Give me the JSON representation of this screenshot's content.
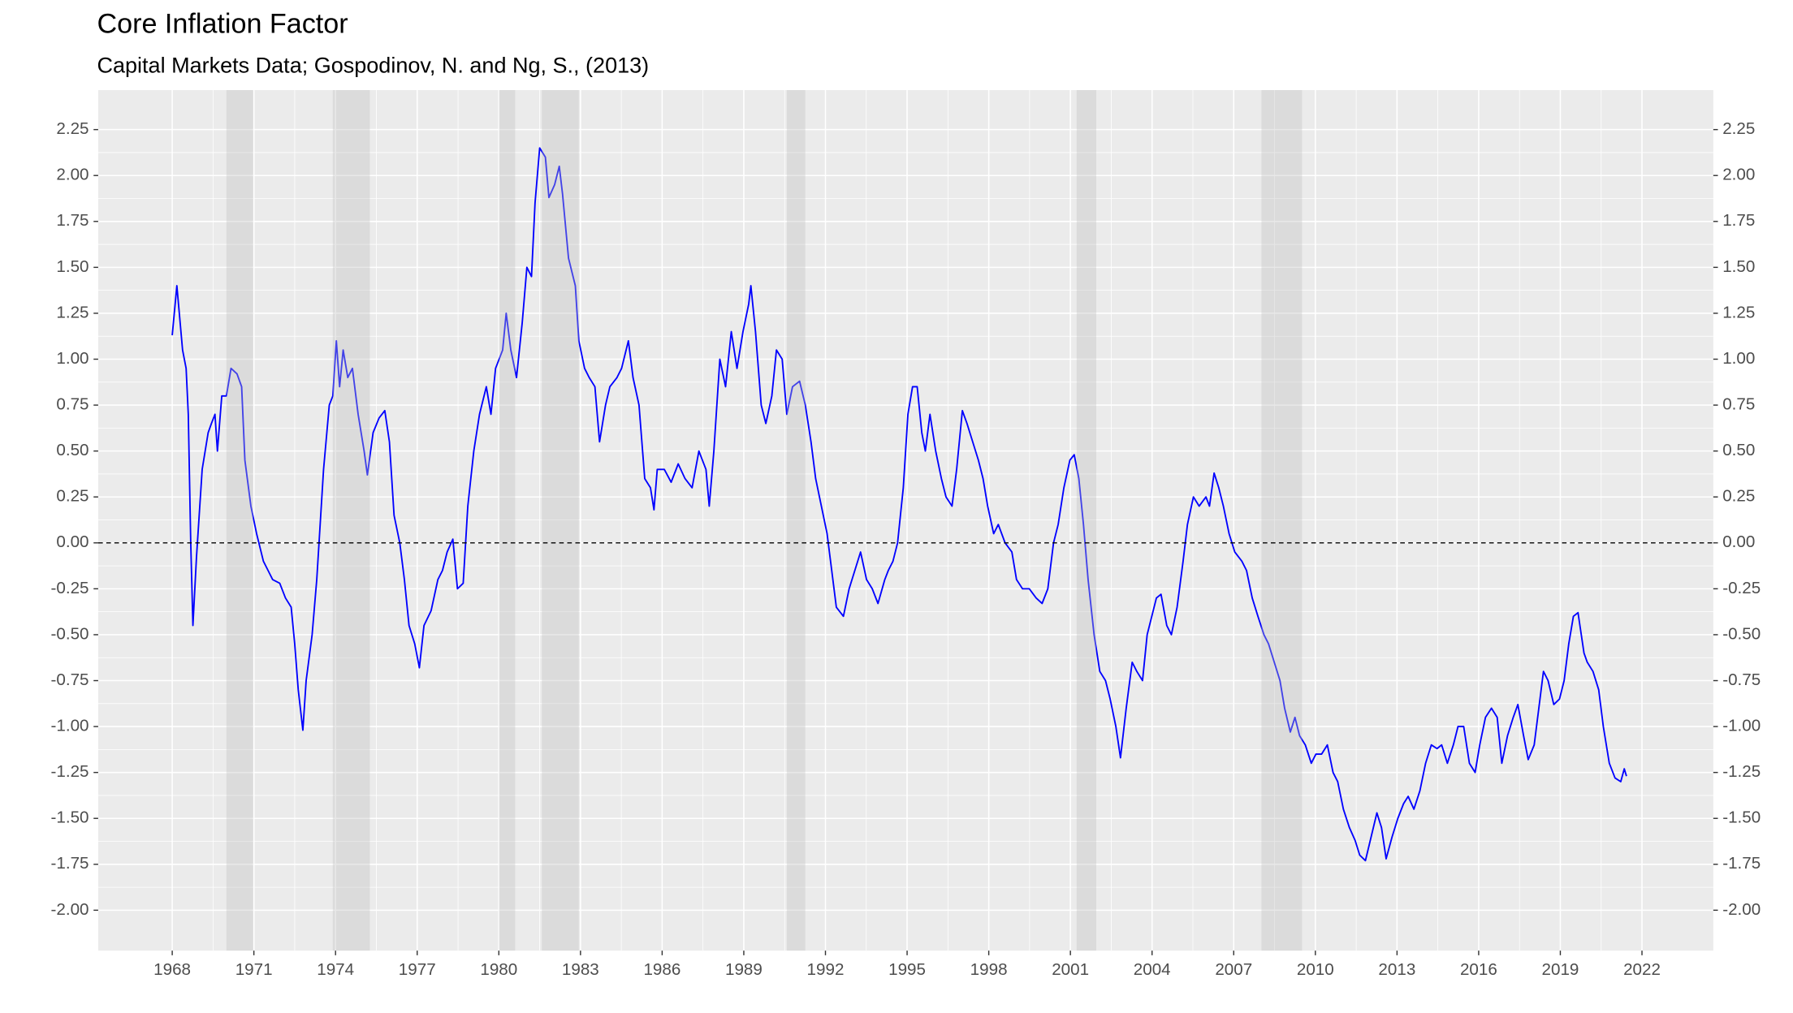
{
  "chart_data": {
    "type": "line",
    "title": "Core Inflation Factor",
    "subtitle": "Capital Markets Data; Gospodinov, N. and Ng, S., (2013)",
    "color": "#0000ff",
    "grid": true,
    "reference_line": 0,
    "shaded_periods": [
      [
        1969.99,
        1970.97
      ],
      [
        1973.9,
        1975.26
      ],
      [
        1980.01,
        1980.6
      ],
      [
        1981.58,
        1982.94
      ],
      [
        1990.58,
        1991.26
      ],
      [
        2001.23,
        2001.95
      ],
      [
        2008.02,
        2009.51
      ]
    ],
    "xlim": [
      1965.28,
      2024.62
    ],
    "xticks": [
      1968,
      1971,
      1974,
      1977,
      1980,
      1983,
      1986,
      1989,
      1992,
      1995,
      1998,
      2001,
      2004,
      2007,
      2010,
      2013,
      2016,
      2019,
      2022
    ],
    "ylim": [
      -2.22,
      2.465
    ],
    "yticks": [
      {
        "value": -2,
        "label": "-2.00"
      },
      {
        "value": -1.75,
        "label": "-1.75"
      },
      {
        "value": -1.5,
        "label": "-1.50"
      },
      {
        "value": -1.25,
        "label": "-1.25"
      },
      {
        "value": -1,
        "label": "-1.00"
      },
      {
        "value": -0.75,
        "label": "-0.75"
      },
      {
        "value": -0.5,
        "label": "-0.50"
      },
      {
        "value": -0.25,
        "label": "-0.25"
      },
      {
        "value": 0,
        "label": "0.00"
      },
      {
        "value": 0.25,
        "label": "0.25"
      },
      {
        "value": 0.5,
        "label": "0.50"
      },
      {
        "value": 0.75,
        "label": "0.75"
      },
      {
        "value": 1,
        "label": "1.00"
      },
      {
        "value": 1.25,
        "label": "1.25"
      },
      {
        "value": 1.5,
        "label": "1.50"
      },
      {
        "value": 1.75,
        "label": "1.75"
      },
      {
        "value": 2,
        "label": "2.00"
      },
      {
        "value": 2.25,
        "label": "2.25"
      }
    ],
    "x": [
      1968.0,
      1968.17,
      1968.38,
      1968.51,
      1968.59,
      1968.68,
      1968.76,
      1968.89,
      1969.1,
      1969.32,
      1969.44,
      1969.57,
      1969.66,
      1969.82,
      1969.99,
      1970.16,
      1970.38,
      1970.55,
      1970.67,
      1970.89,
      1971.1,
      1971.35,
      1971.52,
      1971.69,
      1971.95,
      1972.16,
      1972.37,
      1972.5,
      1972.63,
      1972.8,
      1972.92,
      1973.14,
      1973.31,
      1973.56,
      1973.77,
      1973.9,
      1974.03,
      1974.15,
      1974.28,
      1974.45,
      1974.62,
      1974.83,
      1975.05,
      1975.17,
      1975.38,
      1975.6,
      1975.81,
      1975.98,
      1976.15,
      1976.36,
      1976.53,
      1976.7,
      1976.91,
      1977.08,
      1977.25,
      1977.51,
      1977.76,
      1977.93,
      1978.1,
      1978.31,
      1978.48,
      1978.69,
      1978.86,
      1979.08,
      1979.29,
      1979.54,
      1979.71,
      1979.88,
      1980.14,
      1980.27,
      1980.44,
      1980.65,
      1980.86,
      1981.03,
      1981.2,
      1981.33,
      1981.5,
      1981.71,
      1981.84,
      1982.05,
      1982.22,
      1982.34,
      1982.56,
      1982.81,
      1982.94,
      1983.15,
      1983.32,
      1983.53,
      1983.7,
      1983.92,
      1984.08,
      1984.34,
      1984.51,
      1984.76,
      1984.93,
      1985.15,
      1985.36,
      1985.57,
      1985.7,
      1985.82,
      1986.08,
      1986.33,
      1986.59,
      1986.84,
      1987.1,
      1987.35,
      1987.61,
      1987.73,
      1987.9,
      1988.12,
      1988.33,
      1988.54,
      1988.75,
      1988.97,
      1989.18,
      1989.26,
      1989.43,
      1989.64,
      1989.81,
      1990.03,
      1990.2,
      1990.41,
      1990.58,
      1990.79,
      1991.05,
      1991.26,
      1991.47,
      1991.64,
      1991.85,
      1992.06,
      1992.23,
      1992.4,
      1992.66,
      1992.87,
      1993.08,
      1993.29,
      1993.51,
      1993.72,
      1993.93,
      1994.18,
      1994.31,
      1994.48,
      1994.65,
      1994.86,
      1995.03,
      1995.2,
      1995.37,
      1995.54,
      1995.67,
      1995.84,
      1996.05,
      1996.26,
      1996.43,
      1996.65,
      1996.82,
      1997.03,
      1997.2,
      1997.41,
      1997.62,
      1997.79,
      1997.96,
      1998.18,
      1998.35,
      1998.6,
      1998.85,
      1999.02,
      1999.24,
      1999.49,
      1999.74,
      1999.96,
      2000.17,
      2000.38,
      2000.55,
      2000.76,
      2000.98,
      2001.14,
      2001.31,
      2001.48,
      2001.65,
      2001.87,
      2002.08,
      2002.29,
      2002.46,
      2002.67,
      2002.84,
      2003.05,
      2003.27,
      2003.44,
      2003.65,
      2003.82,
      2003.99,
      2004.16,
      2004.33,
      2004.54,
      2004.71,
      2004.92,
      2005.14,
      2005.3,
      2005.52,
      2005.73,
      2005.98,
      2006.11,
      2006.28,
      2006.45,
      2006.62,
      2006.83,
      2007.04,
      2007.3,
      2007.47,
      2007.68,
      2007.89,
      2008.11,
      2008.28,
      2008.49,
      2008.7,
      2008.87,
      2009.08,
      2009.25,
      2009.42,
      2009.63,
      2009.85,
      2010.02,
      2010.23,
      2010.44,
      2010.65,
      2010.82,
      2011.03,
      2011.25,
      2011.46,
      2011.63,
      2011.84,
      2012.05,
      2012.26,
      2012.43,
      2012.6,
      2012.82,
      2013.03,
      2013.24,
      2013.41,
      2013.62,
      2013.84,
      2014.05,
      2014.26,
      2014.47,
      2014.64,
      2014.85,
      2015.07,
      2015.24,
      2015.45,
      2015.66,
      2015.87,
      2016.04,
      2016.25,
      2016.47,
      2016.68,
      2016.85,
      2017.06,
      2017.27,
      2017.44,
      2017.65,
      2017.82,
      2018.04,
      2018.21,
      2018.38,
      2018.55,
      2018.76,
      2018.97,
      2019.14,
      2019.31,
      2019.48,
      2019.65,
      2019.87,
      2019.99,
      2020.2,
      2020.41,
      2020.58,
      2020.8,
      2021.01,
      2021.22,
      2021.35,
      2021.43
    ],
    "values": [
      1.13,
      1.4,
      1.05,
      0.95,
      0.7,
      0.0,
      -0.45,
      -0.08,
      0.4,
      0.6,
      0.65,
      0.7,
      0.5,
      0.8,
      0.8,
      0.95,
      0.92,
      0.85,
      0.45,
      0.2,
      0.05,
      -0.1,
      -0.15,
      -0.2,
      -0.22,
      -0.3,
      -0.35,
      -0.55,
      -0.8,
      -1.02,
      -0.75,
      -0.5,
      -0.2,
      0.4,
      0.75,
      0.8,
      1.1,
      0.85,
      1.05,
      0.9,
      0.95,
      0.7,
      0.5,
      0.37,
      0.6,
      0.68,
      0.72,
      0.55,
      0.15,
      0.0,
      -0.2,
      -0.45,
      -0.55,
      -0.68,
      -0.45,
      -0.37,
      -0.2,
      -0.15,
      -0.05,
      0.02,
      -0.25,
      -0.22,
      0.2,
      0.5,
      0.7,
      0.85,
      0.7,
      0.95,
      1.05,
      1.25,
      1.05,
      0.9,
      1.2,
      1.5,
      1.45,
      1.85,
      2.15,
      2.1,
      1.88,
      1.95,
      2.05,
      1.9,
      1.55,
      1.4,
      1.1,
      0.95,
      0.9,
      0.85,
      0.55,
      0.75,
      0.85,
      0.9,
      0.95,
      1.1,
      0.9,
      0.75,
      0.35,
      0.3,
      0.18,
      0.4,
      0.4,
      0.33,
      0.43,
      0.35,
      0.3,
      0.5,
      0.4,
      0.2,
      0.5,
      1.0,
      0.85,
      1.15,
      0.95,
      1.15,
      1.3,
      1.4,
      1.15,
      0.75,
      0.65,
      0.8,
      1.05,
      1.0,
      0.7,
      0.85,
      0.88,
      0.75,
      0.55,
      0.35,
      0.2,
      0.05,
      -0.15,
      -0.35,
      -0.4,
      -0.25,
      -0.15,
      -0.05,
      -0.2,
      -0.25,
      -0.33,
      -0.2,
      -0.15,
      -0.1,
      0.0,
      0.3,
      0.7,
      0.85,
      0.85,
      0.6,
      0.5,
      0.7,
      0.5,
      0.35,
      0.25,
      0.2,
      0.4,
      0.72,
      0.65,
      0.55,
      0.45,
      0.35,
      0.2,
      0.05,
      0.1,
      0.0,
      -0.05,
      -0.2,
      -0.25,
      -0.25,
      -0.3,
      -0.33,
      -0.25,
      0.0,
      0.1,
      0.3,
      0.45,
      0.48,
      0.35,
      0.1,
      -0.2,
      -0.5,
      -0.7,
      -0.75,
      -0.85,
      -1.0,
      -1.17,
      -0.9,
      -0.65,
      -0.7,
      -0.75,
      -0.5,
      -0.4,
      -0.3,
      -0.28,
      -0.45,
      -0.5,
      -0.35,
      -0.1,
      0.1,
      0.25,
      0.2,
      0.25,
      0.2,
      0.38,
      0.3,
      0.2,
      0.05,
      -0.05,
      -0.1,
      -0.15,
      -0.3,
      -0.4,
      -0.5,
      -0.55,
      -0.65,
      -0.75,
      -0.9,
      -1.03,
      -0.95,
      -1.05,
      -1.1,
      -1.2,
      -1.15,
      -1.15,
      -1.1,
      -1.25,
      -1.3,
      -1.45,
      -1.55,
      -1.62,
      -1.7,
      -1.73,
      -1.6,
      -1.47,
      -1.55,
      -1.72,
      -1.6,
      -1.5,
      -1.42,
      -1.38,
      -1.45,
      -1.35,
      -1.2,
      -1.1,
      -1.12,
      -1.1,
      -1.2,
      -1.1,
      -1.0,
      -1.0,
      -1.2,
      -1.25,
      -1.1,
      -0.95,
      -0.9,
      -0.95,
      -1.2,
      -1.05,
      -0.95,
      -0.88,
      -1.05,
      -1.18,
      -1.1,
      -0.9,
      -0.7,
      -0.75,
      -0.88,
      -0.85,
      -0.75,
      -0.55,
      -0.4,
      -0.38,
      -0.6,
      -0.65,
      -0.7,
      -0.8,
      -1.0,
      -1.2,
      -1.28,
      -1.3,
      -1.23,
      -1.27
    ]
  }
}
